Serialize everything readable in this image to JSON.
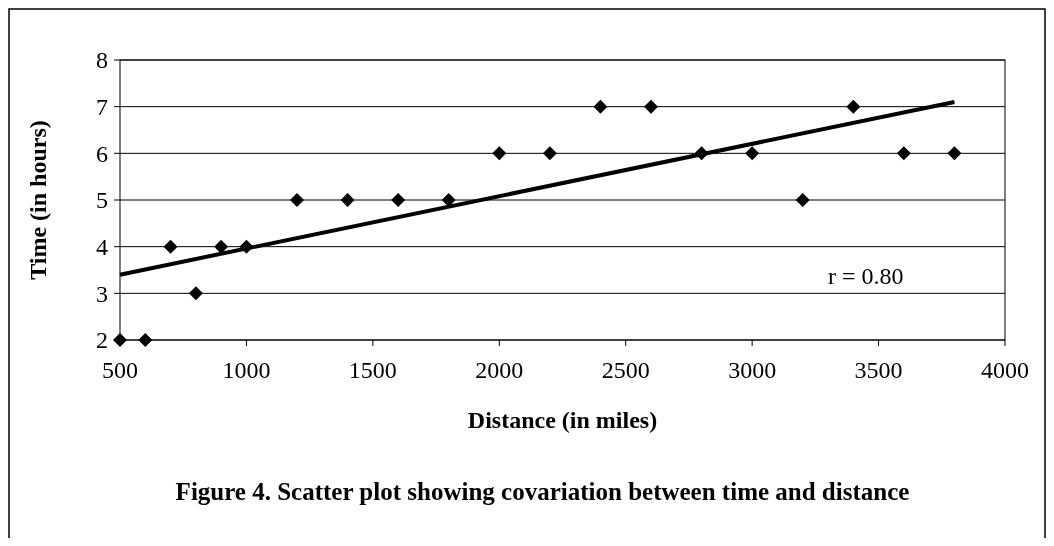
{
  "chart_data": {
    "type": "scatter",
    "title": "Figure 4. Scatter plot showing covariation between time and distance",
    "xlabel": "Distance (in miles)",
    "ylabel": "Time (in hours)",
    "x": [
      500,
      600,
      700,
      800,
      900,
      1000,
      1200,
      1400,
      1600,
      1800,
      2000,
      2200,
      2400,
      2600,
      2800,
      3000,
      3200,
      3400,
      3600,
      3800
    ],
    "series": [
      {
        "color": "#000000",
        "values": [
          2,
          2,
          4,
          3,
          4,
          4,
          5,
          5,
          5,
          5,
          6,
          6,
          7,
          7,
          6,
          6,
          5,
          7,
          6,
          6
        ],
        "marker": "diamond"
      },
      {
        "type": "line",
        "color": "#000000",
        "x": [
          500,
          3800
        ],
        "values": [
          3.4,
          7.1
        ],
        "marker": "none"
      }
    ],
    "annotations": [
      "r  = 0.80"
    ],
    "xlim": [
      500,
      4000
    ],
    "ylim": [
      2,
      8
    ],
    "xticks": [
      500,
      1000,
      1500,
      2000,
      2500,
      3000,
      3500,
      4000
    ],
    "yticks": [
      2,
      3,
      4,
      5,
      6,
      7,
      8
    ],
    "grid": "y"
  }
}
